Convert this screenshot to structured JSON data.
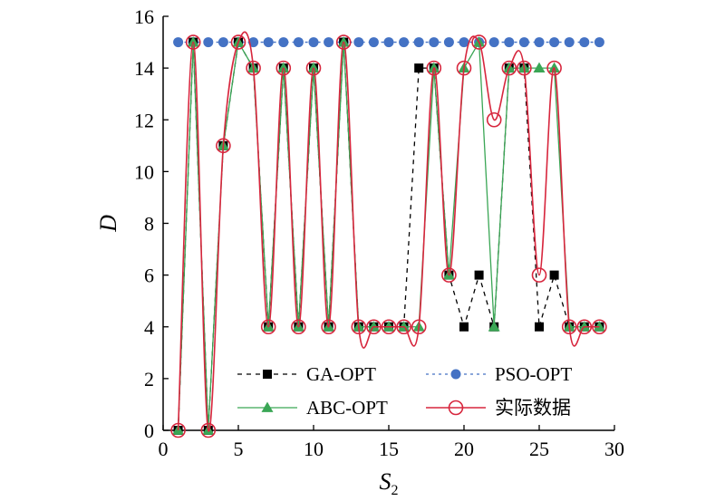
{
  "chart_data": {
    "type": "line",
    "xlabel": "S",
    "xlabel_subscript": "2",
    "ylabel": "D",
    "xlim": [
      0,
      30
    ],
    "ylim": [
      0,
      16
    ],
    "xticks": [
      0,
      5,
      10,
      15,
      20,
      25,
      30
    ],
    "yticks": [
      0,
      2,
      4,
      6,
      8,
      10,
      12,
      14,
      16
    ],
    "grid": false,
    "legend_position": "bottom-center",
    "series": [
      {
        "name": "PSO-OPT",
        "color": "#4472c4",
        "line_style": "dotted",
        "marker": "circle-filled",
        "x": [
          1,
          2,
          3,
          4,
          5,
          6,
          7,
          8,
          9,
          10,
          11,
          12,
          13,
          14,
          15,
          16,
          17,
          18,
          19,
          20,
          21,
          22,
          23,
          24,
          25,
          26,
          27,
          28,
          29
        ],
        "y": [
          15,
          15,
          15,
          15,
          15,
          15,
          15,
          15,
          15,
          15,
          15,
          15,
          15,
          15,
          15,
          15,
          15,
          15,
          15,
          15,
          15,
          15,
          15,
          15,
          15,
          15,
          15,
          15,
          15
        ]
      },
      {
        "name": "GA-OPT",
        "color": "#000000",
        "line_style": "dashed",
        "marker": "square",
        "x": [
          1,
          2,
          3,
          4,
          5,
          6,
          7,
          8,
          9,
          10,
          11,
          12,
          13,
          14,
          15,
          16,
          17,
          18,
          19,
          20,
          21,
          22,
          23,
          24,
          25,
          26,
          27,
          28,
          29
        ],
        "y": [
          0,
          15,
          0,
          11,
          15,
          14,
          4,
          14,
          4,
          14,
          4,
          15,
          4,
          4,
          4,
          4,
          14,
          14,
          6,
          4,
          6,
          4,
          14,
          14,
          4,
          6,
          4,
          4,
          4
        ]
      },
      {
        "name": "ABC-OPT",
        "color": "#3aa655",
        "line_style": "solid",
        "marker": "triangle",
        "x": [
          1,
          2,
          3,
          4,
          5,
          6,
          7,
          8,
          9,
          10,
          11,
          12,
          13,
          14,
          15,
          16,
          17,
          18,
          19,
          20,
          21,
          22,
          23,
          24,
          25,
          26,
          27,
          28,
          29
        ],
        "y": [
          0,
          15,
          0,
          11,
          15,
          14,
          4,
          14,
          4,
          14,
          4,
          15,
          4,
          4,
          4,
          4,
          4,
          14,
          6,
          14,
          15,
          4,
          14,
          14,
          14,
          14,
          4,
          4,
          4
        ]
      },
      {
        "name": "实际数据",
        "color": "#d7263d",
        "line_style": "solid-smooth",
        "marker": "circle-open",
        "x": [
          1,
          2,
          3,
          4,
          5,
          6,
          7,
          8,
          9,
          10,
          11,
          12,
          13,
          14,
          15,
          16,
          17,
          18,
          19,
          20,
          21,
          22,
          23,
          24,
          25,
          26,
          27,
          28,
          29
        ],
        "y": [
          0,
          15,
          0,
          11,
          15,
          14,
          4,
          14,
          4,
          14,
          4,
          15,
          4,
          4,
          4,
          4,
          4,
          14,
          6,
          14,
          15,
          12,
          14,
          14,
          6,
          14,
          4,
          4,
          4
        ]
      }
    ],
    "legend": {
      "order": [
        "GA-OPT",
        "PSO-OPT",
        "ABC-OPT",
        "实际数据"
      ]
    }
  }
}
